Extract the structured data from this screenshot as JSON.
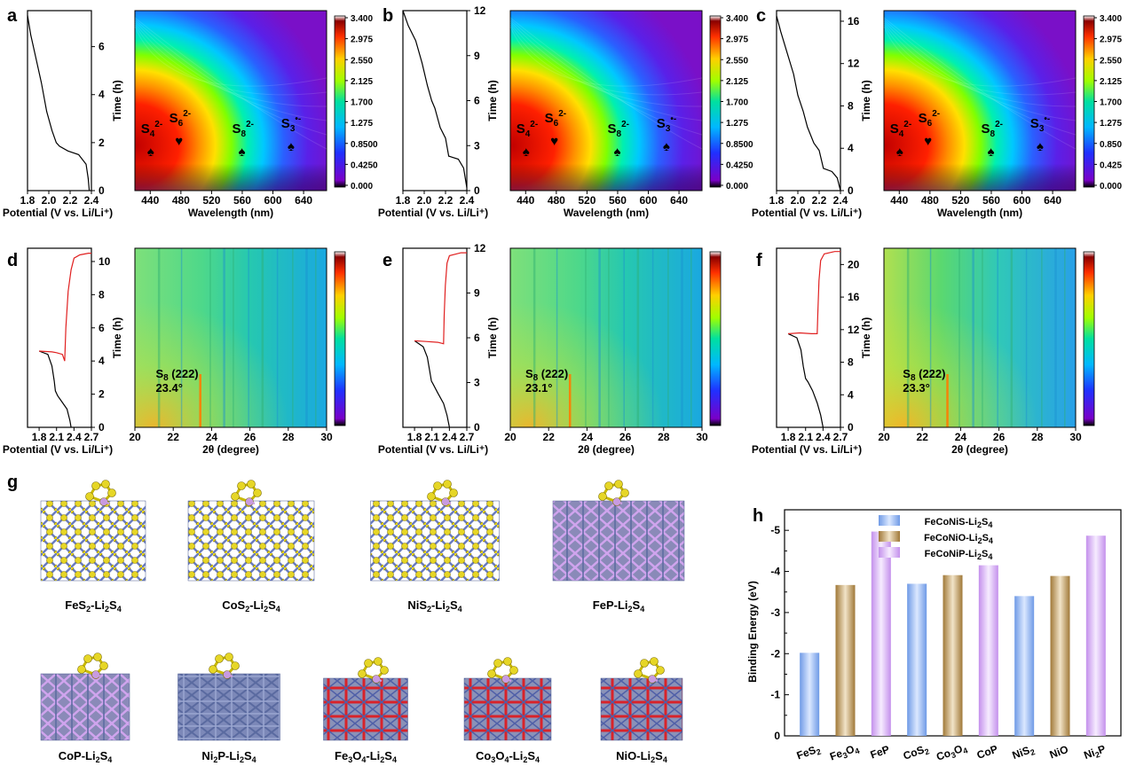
{
  "panel_letters": [
    "a",
    "b",
    "c",
    "d",
    "e",
    "f",
    "g",
    "h"
  ],
  "colorbar_ticks": [
    "3.400",
    "2.975",
    "2.550",
    "2.125",
    "1.700",
    "1.275",
    "0.8500",
    "0.4250",
    "0.000"
  ],
  "colorbar_ticks_c": [
    "3.400",
    "2.975",
    "2.550",
    "2.125",
    "1.700",
    "1.275",
    "0.850",
    "0.425",
    "0.000"
  ],
  "uv_x_label": "Wavelength (nm)",
  "uv_x_ticks": [
    "440",
    "480",
    "520",
    "560",
    "600",
    "640"
  ],
  "xrd_x_label": "2θ (degree)",
  "xrd_x_ticks": [
    "20",
    "22",
    "24",
    "26",
    "28",
    "30"
  ],
  "potential_label": "Potential (V vs. Li/Li⁺)",
  "potential_ticks_top": [
    "1.8",
    "2.0",
    "2.2",
    "2.4"
  ],
  "potential_ticks_bottom": [
    "1.8",
    "2.1",
    "2.4",
    "2.7"
  ],
  "time_label": "Time (h)",
  "time_ticks": {
    "a": [
      "0",
      "2",
      "4",
      "6"
    ],
    "b": [
      "0",
      "3",
      "6",
      "9",
      "12"
    ],
    "c": [
      "0",
      "4",
      "8",
      "12",
      "16"
    ],
    "d": [
      "0",
      "2",
      "4",
      "6",
      "8",
      "10"
    ],
    "e": [
      "0",
      "3",
      "6",
      "9",
      "12"
    ],
    "f": [
      "0",
      "4",
      "8",
      "12",
      "16",
      "20"
    ]
  },
  "peak_labels": [
    {
      "base": "S",
      "sub": "4",
      "sup": "2-"
    },
    {
      "base": "S",
      "sub": "6",
      "sup": "2-"
    },
    {
      "base": "S",
      "sub": "8",
      "sup": "2-"
    },
    {
      "base": "S",
      "sub": "3",
      "sup": "•-"
    }
  ],
  "xrd_annotations": {
    "d": {
      "line1": "S8 (222)",
      "line2": "23.4°"
    },
    "e": {
      "line1": "S8 (222)",
      "line2": "23.1°"
    },
    "f": {
      "line1": "S8 (222)",
      "line2": "23.3°"
    }
  },
  "structures": [
    "FeS2-Li2S4",
    "CoS2-Li2S4",
    "NiS2-Li2S4",
    "FeP-Li2S4",
    "CoP-Li2S4",
    "Ni2P-Li2S4",
    "Fe3O4-Li2S4",
    "Co3O4-Li2S4",
    "NiO-Li2S4"
  ],
  "colors": {
    "blue_bar": "#8fb4ef",
    "brown_bar": "#b9955c",
    "violet_bar": "#d9b6f0",
    "sulfur": "#e6d626",
    "phosphorus": "#c89be0",
    "metal": "#6f7fb8",
    "oxygen": "#d8232a"
  },
  "chart_data": {
    "type": "bar",
    "ylabel": "Binding Energy (eV)",
    "yticks": [
      "0",
      "-1",
      "-2",
      "-3",
      "-4",
      "-5"
    ],
    "ylim": [
      0,
      -5.5
    ],
    "categories": [
      "FeS2",
      "Fe3O4",
      "FeP",
      "CoS2",
      "Co3O4",
      "CoP",
      "NiS2",
      "NiO",
      "Ni2P"
    ],
    "series": [
      {
        "name": "FeCoNiS-Li2S4",
        "color": "#8fb4ef",
        "values": [
          -2.02,
          null,
          null,
          -3.7,
          null,
          null,
          -3.4,
          null,
          null
        ]
      },
      {
        "name": "FeCoNiO-Li2S4",
        "color": "#b9955c",
        "values": [
          null,
          -3.67,
          null,
          null,
          -3.91,
          null,
          null,
          -3.89,
          null
        ]
      },
      {
        "name": "FeCoNiP-Li2S4",
        "color": "#d9b6f0",
        "values": [
          null,
          null,
          -4.97,
          null,
          null,
          -4.15,
          null,
          null,
          -4.87
        ]
      }
    ]
  }
}
